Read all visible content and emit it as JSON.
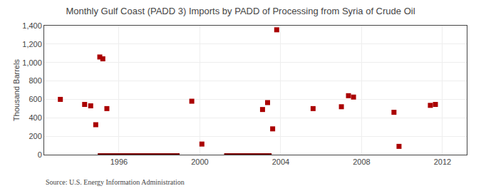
{
  "chart_data": {
    "type": "scatter",
    "title": "Monthly Gulf Coast (PADD 3) Imports by PADD of Processing from Syria of Crude Oil",
    "ylabel": "Thousand Barrels",
    "annotations": [
      "Source: U.S. Energy Information Administration"
    ],
    "xlim": [
      1992.3,
      2013.2
    ],
    "xticks": [
      1996,
      2000,
      2004,
      2008,
      2012
    ],
    "ylim": [
      0,
      1400
    ],
    "yticks": [
      0,
      200,
      400,
      600,
      800,
      {
        "value": 1000,
        "label": "1,000"
      },
      {
        "value": 1200,
        "label": "1,200"
      },
      {
        "value": 1400,
        "label": "1,400"
      }
    ],
    "grid": true,
    "series": [
      {
        "type": "scatter",
        "color": "#aa0000",
        "marker": "square",
        "x": [
          1993.1,
          1994.3,
          1994.6,
          1994.85,
          1995.05,
          1995.2,
          1995.4,
          1999.6,
          2000.1,
          2003.1,
          2003.35,
          2003.6,
          2003.8,
          2005.6,
          2007.0,
          2007.35,
          2007.6,
          2009.6,
          2009.85,
          2011.4,
          2011.65
        ],
        "values": [
          600,
          545,
          530,
          325,
          1060,
          1040,
          500,
          580,
          115,
          490,
          565,
          280,
          1355,
          500,
          520,
          640,
          625,
          460,
          90,
          535,
          545
        ]
      },
      {
        "type": "line",
        "color": "#7a0000",
        "line_style": "solid",
        "x": [
          1994.95,
          1999.0,
          null,
          2001.2,
          2003.55
        ],
        "values": [
          0,
          0,
          null,
          0,
          0
        ]
      }
    ]
  }
}
